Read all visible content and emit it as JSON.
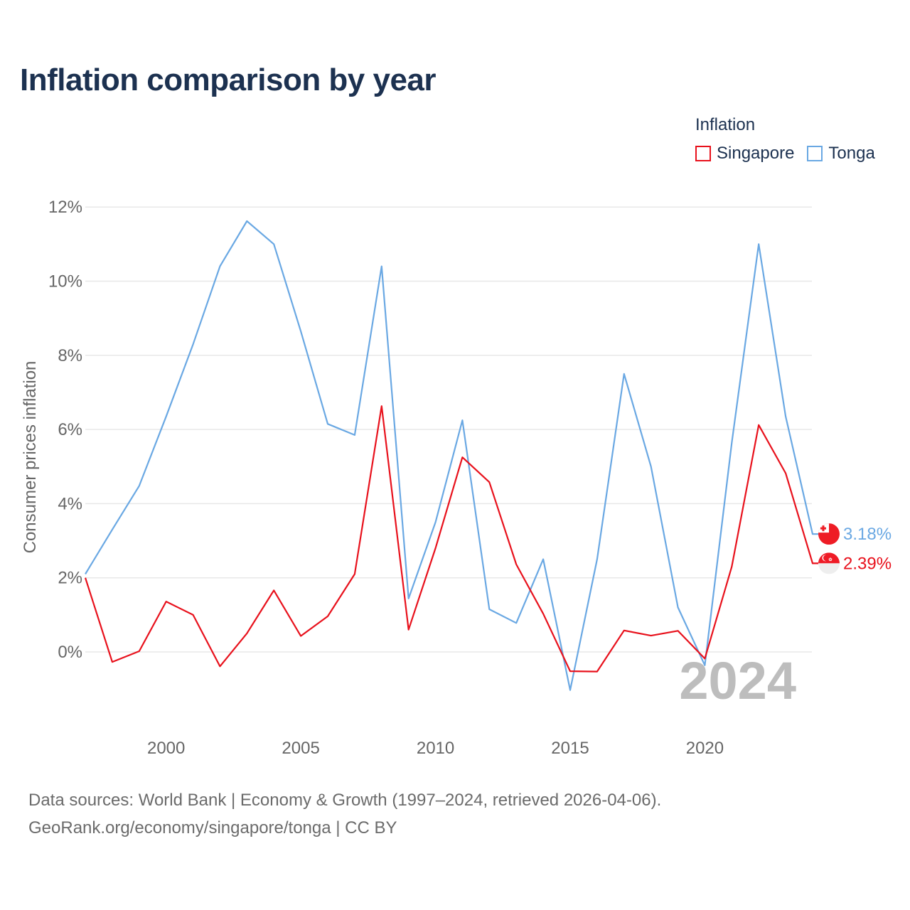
{
  "chart_data": {
    "type": "line",
    "title": "Inflation comparison by year",
    "ylabel": "Consumer prices inflation",
    "xlabel": "",
    "legend": {
      "title": "Inflation",
      "placement": "top-right"
    },
    "xlim": [
      1997,
      2024
    ],
    "ylim": [
      -2,
      12
    ],
    "x_ticks": [
      2000,
      2005,
      2010,
      2015,
      2020
    ],
    "y_ticks": [
      0,
      2,
      4,
      6,
      8,
      10,
      12
    ],
    "y_tick_labels": [
      "0%",
      "2%",
      "4%",
      "6%",
      "8%",
      "10%",
      "12%"
    ],
    "grid": true,
    "year_watermark": "2024",
    "x": [
      1997,
      1998,
      1999,
      2000,
      2001,
      2002,
      2003,
      2004,
      2005,
      2006,
      2007,
      2008,
      2009,
      2010,
      2011,
      2012,
      2013,
      2014,
      2015,
      2016,
      2017,
      2018,
      2019,
      2020,
      2021,
      2022,
      2023,
      2024
    ],
    "series": [
      {
        "name": "Singapore",
        "color": "#e8111c",
        "end_label": "2.39%",
        "flag": "singapore-flag",
        "values": [
          2.0,
          -0.27,
          0.02,
          1.36,
          1.0,
          -0.39,
          0.5,
          1.66,
          0.43,
          0.96,
          2.1,
          6.63,
          0.6,
          2.8,
          5.25,
          4.58,
          2.36,
          1.03,
          -0.52,
          -0.53,
          0.58,
          0.44,
          0.57,
          -0.18,
          2.3,
          6.12,
          4.82,
          2.39
        ]
      },
      {
        "name": "Tonga",
        "color": "#6aa8e3",
        "end_label": "3.18%",
        "flag": "tonga-flag",
        "values": [
          2.1,
          3.3,
          4.48,
          6.35,
          8.3,
          10.4,
          11.62,
          11.0,
          8.65,
          6.15,
          5.85,
          10.4,
          1.44,
          3.5,
          6.25,
          1.15,
          0.78,
          2.5,
          -1.03,
          2.5,
          7.5,
          5.0,
          1.2,
          -0.36,
          5.64,
          11.0,
          6.35,
          3.18
        ]
      }
    ]
  },
  "footer": {
    "source_line": "Data sources: World Bank | Economy & Growth (1997–2024, retrieved 2026-04-06).",
    "url_line": "GeoRank.org/economy/singapore/tonga | CC BY"
  }
}
